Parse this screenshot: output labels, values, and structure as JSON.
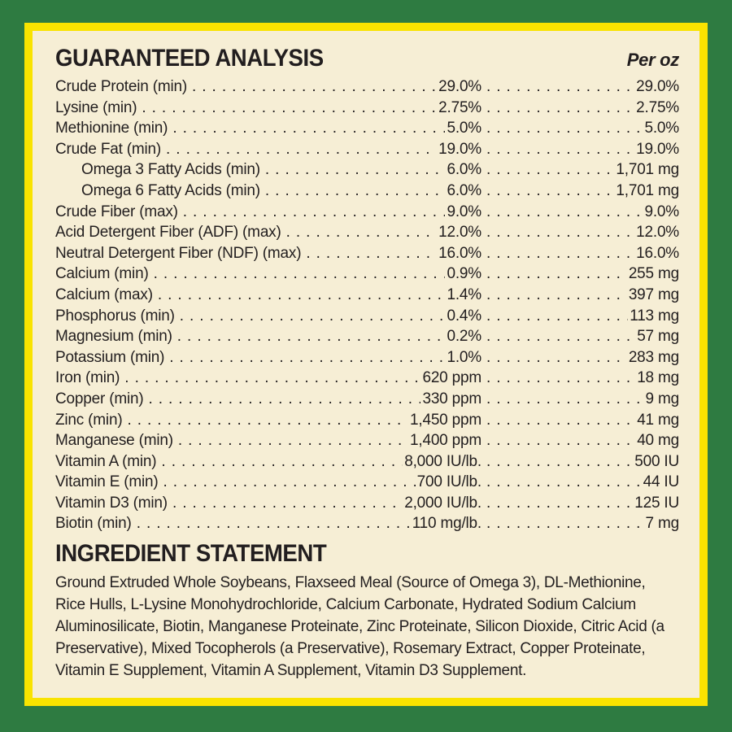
{
  "panel": {
    "colors": {
      "background_green": "#2e7b41",
      "border_yellow": "#f9e300",
      "label_cream": "#f6eed5",
      "text_ink": "#221e1f"
    },
    "guaranteed_analysis": {
      "title": "GUARANTEED ANALYSIS",
      "per_oz_header": "Per oz",
      "rows": [
        {
          "label": "Crude Protein (min)",
          "indent": false,
          "amount": "29.0%",
          "per_oz": "29.0%"
        },
        {
          "label": "Lysine (min)",
          "indent": false,
          "amount": "2.75%",
          "per_oz": "2.75%"
        },
        {
          "label": "Methionine (min)",
          "indent": false,
          "amount": "5.0%",
          "per_oz": "5.0%"
        },
        {
          "label": "Crude Fat (min)",
          "indent": false,
          "amount": "19.0%",
          "per_oz": "19.0%"
        },
        {
          "label": "Omega 3 Fatty Acids (min)",
          "indent": true,
          "amount": "6.0%",
          "per_oz": "1,701 mg"
        },
        {
          "label": "Omega 6 Fatty Acids (min)",
          "indent": true,
          "amount": "6.0%",
          "per_oz": "1,701 mg"
        },
        {
          "label": "Crude Fiber (max)",
          "indent": false,
          "amount": "9.0%",
          "per_oz": "9.0%"
        },
        {
          "label": "Acid Detergent Fiber (ADF) (max)",
          "indent": false,
          "amount": "12.0%",
          "per_oz": "12.0%"
        },
        {
          "label": "Neutral Detergent Fiber (NDF) (max)",
          "indent": false,
          "amount": "16.0%",
          "per_oz": "16.0%"
        },
        {
          "label": "Calcium (min)",
          "indent": false,
          "amount": "0.9%",
          "per_oz": "255 mg"
        },
        {
          "label": "Calcium (max)",
          "indent": false,
          "amount": "1.4%",
          "per_oz": "397 mg"
        },
        {
          "label": "Phosphorus (min)",
          "indent": false,
          "amount": "0.4%",
          "per_oz": "113 mg"
        },
        {
          "label": "Magnesium (min)",
          "indent": false,
          "amount": "0.2%",
          "per_oz": "57 mg"
        },
        {
          "label": "Potassium (min)",
          "indent": false,
          "amount": "1.0%",
          "per_oz": "283 mg"
        },
        {
          "label": "Iron (min)",
          "indent": false,
          "amount": "620 ppm",
          "per_oz": "18 mg"
        },
        {
          "label": "Copper (min)",
          "indent": false,
          "amount": "330 ppm",
          "per_oz": "9 mg"
        },
        {
          "label": "Zinc (min)",
          "indent": false,
          "amount": "1,450 ppm",
          "per_oz": "41 mg"
        },
        {
          "label": "Manganese (min)",
          "indent": false,
          "amount": "1,400 ppm",
          "per_oz": "40 mg"
        },
        {
          "label": "Vitamin A (min)",
          "indent": false,
          "amount": "8,000 IU/lb.",
          "per_oz": "500 IU"
        },
        {
          "label": "Vitamin E (min)",
          "indent": false,
          "amount": "700 IU/lb.",
          "per_oz": "44 IU"
        },
        {
          "label": "Vitamin D3 (min)",
          "indent": false,
          "amount": "2,000 IU/lb.",
          "per_oz": "125 IU"
        },
        {
          "label": "Biotin (min)",
          "indent": false,
          "amount": "110 mg/lb.",
          "per_oz": "7 mg"
        }
      ]
    },
    "ingredient_statement": {
      "title": "INGREDIENT STATEMENT",
      "text": "Ground Extruded Whole Soybeans, Flaxseed Meal (Source of Omega 3), DL-Methionine, Rice Hulls, L-Lysine Monohydrochloride, Calcium Carbonate, Hydrated Sodium Calcium Aluminosilicate, Biotin, Manganese Proteinate, Zinc Proteinate, Silicon Dioxide, Citric Acid (a Preservative), Mixed Tocopherols (a Preservative), Rosemary Extract, Copper Proteinate, Vitamin E Supplement, Vitamin A Supplement, Vitamin D3 Supplement."
    }
  }
}
